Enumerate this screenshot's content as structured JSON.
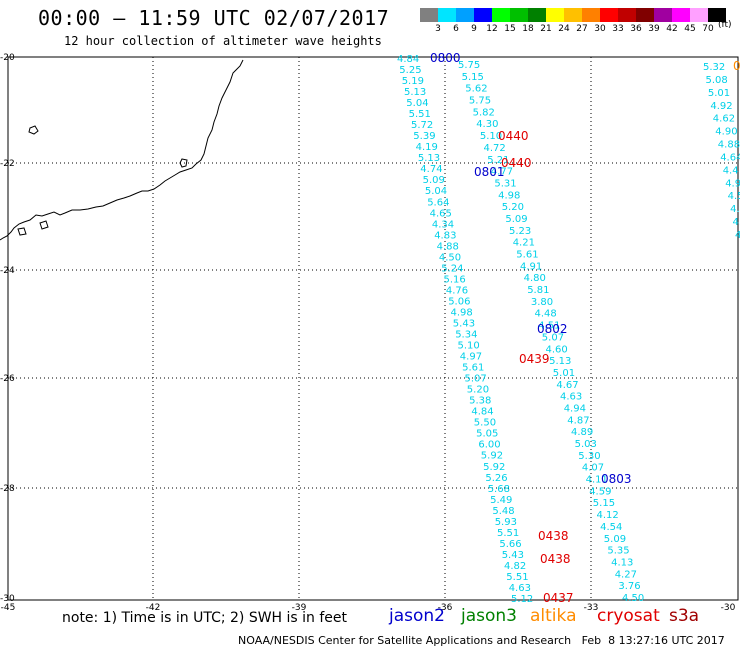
{
  "header": {
    "title": "00:00 – 11:59 UTC 02/07/2017",
    "subtitle": "12 hour collection of altimeter wave heights"
  },
  "colorbar": {
    "unit": "(ft)",
    "levels": [
      {
        "label": "3",
        "color": "#808080"
      },
      {
        "label": "6",
        "color": "#00e5ff"
      },
      {
        "label": "9",
        "color": "#00a0ff"
      },
      {
        "label": "12",
        "color": "#0000ff"
      },
      {
        "label": "15",
        "color": "#00ff00"
      },
      {
        "label": "18",
        "color": "#00c000"
      },
      {
        "label": "21",
        "color": "#008000"
      },
      {
        "label": "24",
        "color": "#ffff00"
      },
      {
        "label": "27",
        "color": "#ffc000"
      },
      {
        "label": "30",
        "color": "#ff8000"
      },
      {
        "label": "33",
        "color": "#ff0000"
      },
      {
        "label": "36",
        "color": "#c00000"
      },
      {
        "label": "39",
        "color": "#800000"
      },
      {
        "label": "42",
        "color": "#a000a0"
      },
      {
        "label": "45",
        "color": "#ff00ff"
      },
      {
        "label": "70",
        "color": "#ffa0ff"
      },
      {
        "label": "",
        "color": "#000000"
      }
    ]
  },
  "map": {
    "lat_labels": [
      "-20",
      "-22",
      "-24",
      "-26",
      "-28",
      "-30"
    ],
    "lon_labels": [
      "-45",
      "-42",
      "-39",
      "-36",
      "-33",
      "-30"
    ],
    "colors": {
      "cyan": "#00d0e8",
      "jason2": "#0000cc",
      "cryosat": "#e00000",
      "altika": "#ff8c00"
    }
  },
  "tracks": {
    "track_a": [
      "4.84",
      "5.25",
      "5.19",
      "5.13",
      "5.04",
      "5.51",
      "5.72",
      "5.39",
      "4.19",
      "5.13",
      "4.74",
      "5.09",
      "5.04",
      "5.64",
      "4.65",
      "4.34",
      "4.83",
      "4.88",
      "4.50",
      "5.24",
      "5.16",
      "4.76",
      "5.06",
      "4.98",
      "5.43",
      "5.34",
      "5.10",
      "4.97",
      "5.61",
      "5.07",
      "5.20",
      "5.38",
      "4.84",
      "5.50",
      "5.05",
      "6.00",
      "5.92",
      "5.92",
      "5.26",
      "5.68",
      "5.49",
      "5.48",
      "5.93",
      "5.51",
      "5.66",
      "5.43",
      "4.82",
      "5.51",
      "4.63",
      "5.12"
    ],
    "track_b": [
      "5.75",
      "5.15",
      "5.62",
      "5.75",
      "5.82",
      "4.30",
      "5.10",
      "4.72",
      "5.21",
      "4.77",
      "5.31",
      "4.98",
      "5.20",
      "5.09",
      "5.23",
      "4.21",
      "5.61",
      "4.91",
      "4.80",
      "5.81",
      "3.80",
      "4.48",
      "4.51",
      "5.07",
      "4.60",
      "5.13",
      "5.01",
      "4.67",
      "4.63",
      "4.94",
      "4.87",
      "4.89",
      "5.03",
      "5.30",
      "4.07",
      "4.11",
      "4.59",
      "5.15",
      "4.12",
      "4.54",
      "5.09",
      "5.35",
      "4.13",
      "4.27",
      "3.76",
      "4.50"
    ],
    "track_c": [
      "5.32",
      "5.08",
      "5.01",
      "4.92",
      "4.62",
      "4.90",
      "4.88",
      "4.64",
      "4.4",
      "4.9",
      "4.5",
      "4.",
      "4.",
      "4."
    ],
    "pass_labels": [
      {
        "text": "0800",
        "sat": "jason2"
      },
      {
        "text": "0440",
        "sat": "cryosat"
      },
      {
        "text": "0440",
        "sat": "cryosat"
      },
      {
        "text": "0801",
        "sat": "jason2"
      },
      {
        "text": "0802",
        "sat": "jason2"
      },
      {
        "text": "0439",
        "sat": "cryosat"
      },
      {
        "text": "0803",
        "sat": "jason2"
      },
      {
        "text": "0438",
        "sat": "cryosat"
      },
      {
        "text": "0438",
        "sat": "cryosat"
      },
      {
        "text": "0437",
        "sat": "cryosat"
      },
      {
        "text": "0",
        "sat": "altika"
      }
    ]
  },
  "legend": {
    "note": "note: 1) Time is in UTC; 2) SWH is in feet",
    "satellites": [
      {
        "name": "jason2",
        "color": "#0000cc"
      },
      {
        "name": "jason3",
        "color": "#008000"
      },
      {
        "name": "altika",
        "color": "#ff8c00"
      },
      {
        "name": "cryosat",
        "color": "#e00000"
      },
      {
        "name": "s3a",
        "color": "#a00000"
      }
    ]
  },
  "footer": {
    "credit": "NOAA/NESDIS Center for Satellite Applications and Research   Feb  8 13:27:16 UTC 2017"
  }
}
